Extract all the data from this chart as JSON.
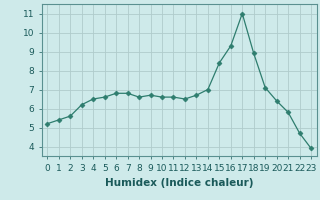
{
  "x": [
    0,
    1,
    2,
    3,
    4,
    5,
    6,
    7,
    8,
    9,
    10,
    11,
    12,
    13,
    14,
    15,
    16,
    17,
    18,
    19,
    20,
    21,
    22,
    23
  ],
  "y": [
    5.2,
    5.4,
    5.6,
    6.2,
    6.5,
    6.6,
    6.8,
    6.8,
    6.6,
    6.7,
    6.6,
    6.6,
    6.5,
    6.7,
    7.0,
    8.4,
    9.3,
    11.0,
    8.9,
    7.1,
    6.4,
    5.8,
    4.7,
    3.9
  ],
  "line_color": "#2e7d6e",
  "marker": "D",
  "marker_size": 2.5,
  "bg_color": "#ceeaea",
  "grid_color": "#b0cccc",
  "xlabel": "Humidex (Indice chaleur)",
  "ylim": [
    3.5,
    11.5
  ],
  "xlim": [
    -0.5,
    23.5
  ],
  "yticks": [
    4,
    5,
    6,
    7,
    8,
    9,
    10,
    11
  ],
  "xtick_labels": [
    "0",
    "1",
    "2",
    "3",
    "4",
    "5",
    "6",
    "7",
    "8",
    "9",
    "10",
    "11",
    "12",
    "13",
    "14",
    "15",
    "16",
    "17",
    "18",
    "19",
    "20",
    "21",
    "22",
    "23"
  ],
  "label_fontsize": 7.5,
  "tick_fontsize": 6.5
}
